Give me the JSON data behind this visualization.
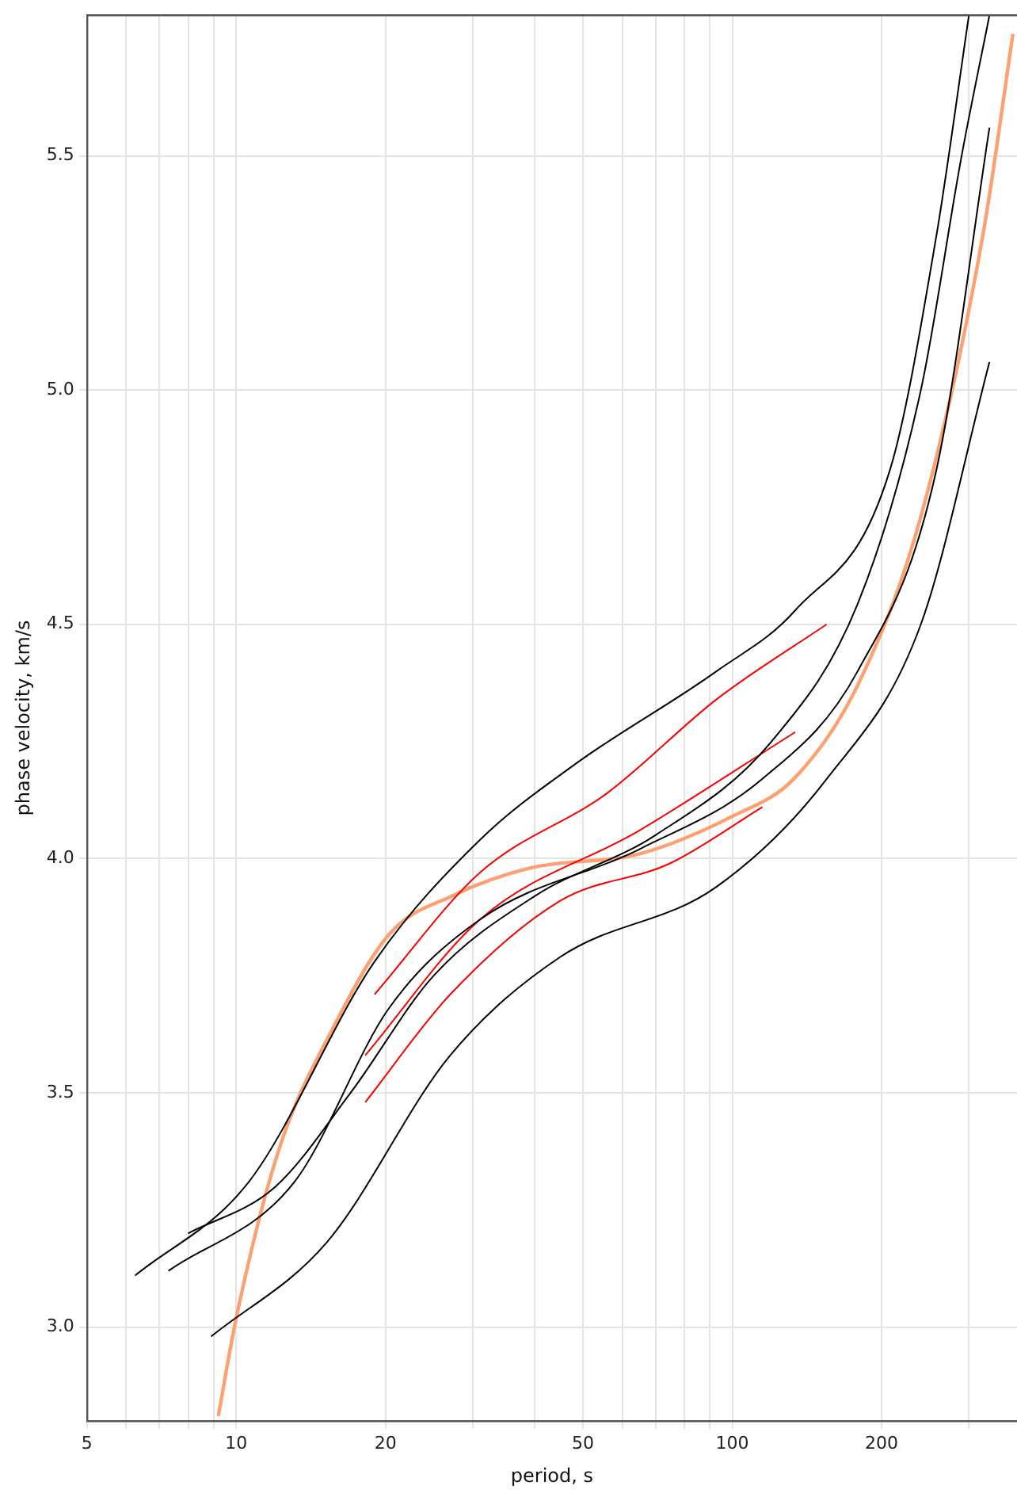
{
  "chart_data": {
    "type": "line",
    "xlabel": "period, s",
    "ylabel": "phase velocity, km/s",
    "log": "x",
    "grid": true,
    "legend": false,
    "marker": "none",
    "line_style": "solid",
    "xlim": [
      5,
      375
    ],
    "ylim": [
      2.8,
      5.8
    ],
    "xticks": [
      5,
      {
        "value": 6,
        "label": null
      },
      {
        "value": 7,
        "label": null
      },
      {
        "value": 8,
        "label": null
      },
      {
        "value": 9,
        "label": null
      },
      10,
      20,
      {
        "value": 30,
        "label": null
      },
      {
        "value": 40,
        "label": null
      },
      50,
      {
        "value": 60,
        "label": null
      },
      {
        "value": 70,
        "label": null
      },
      {
        "value": 80,
        "label": null
      },
      {
        "value": 90,
        "label": null
      },
      100,
      200,
      {
        "value": 300,
        "label": null
      }
    ],
    "yticks": [
      {
        "value": 3.0,
        "label": "3.0"
      },
      3.5,
      {
        "value": 4.0,
        "label": "4.0"
      },
      4.5,
      {
        "value": 5.0,
        "label": "5.0"
      },
      5.5
    ],
    "series": [
      {
        "color": "#000000",
        "x": [
          8.9,
          15.2,
          27,
          45,
          93,
          155,
          240,
          330
        ],
        "values": [
          2.98,
          3.18,
          3.58,
          3.79,
          3.94,
          4.17,
          4.5,
          5.06
        ]
      },
      {
        "color": "#000000",
        "x": [
          7.3,
          13.1,
          20.3,
          31,
          65,
          115,
          179,
          258,
          330
        ],
        "values": [
          3.12,
          3.31,
          3.68,
          3.87,
          4.02,
          4.17,
          4.4,
          4.83,
          5.56
        ]
      },
      {
        "color": "#000000",
        "x": [
          6.25,
          10.6,
          19,
          31,
          48,
          93,
          134,
          208,
          258,
          300
        ],
        "values": [
          3.11,
          3.31,
          3.78,
          4.04,
          4.2,
          4.4,
          4.53,
          4.83,
          5.33,
          5.8
        ]
      },
      {
        "color": "#000000",
        "x": [
          8,
          12,
          17,
          25,
          40,
          70,
          120,
          180,
          240,
          290,
          330
        ],
        "values": [
          3.2,
          3.3,
          3.5,
          3.75,
          3.92,
          4.05,
          4.25,
          4.55,
          5.0,
          5.5,
          5.8
        ]
      },
      {
        "color": "#ff0000",
        "x": [
          18.2,
          27,
          45,
          75,
          115
        ],
        "values": [
          3.48,
          3.71,
          3.91,
          3.99,
          4.11
        ]
      },
      {
        "color": "#ff0000",
        "x": [
          18.2,
          31,
          65,
          134
        ],
        "values": [
          3.58,
          3.87,
          4.06,
          4.27
        ]
      },
      {
        "color": "#ff0000",
        "x": [
          19,
          31,
          56,
          93,
          155
        ],
        "values": [
          3.71,
          3.97,
          4.14,
          4.34,
          4.5
        ]
      },
      {
        "color": "#ffa070",
        "x": [
          9.2,
          10,
          12.2,
          15.7,
          20.4,
          27.2,
          39.2,
          65,
          100,
          133,
          179,
          240,
          320,
          368
        ],
        "values": [
          2.81,
          3.02,
          3.38,
          3.64,
          3.84,
          3.92,
          3.98,
          4.01,
          4.09,
          4.17,
          4.37,
          4.73,
          5.33,
          5.76
        ]
      }
    ]
  }
}
